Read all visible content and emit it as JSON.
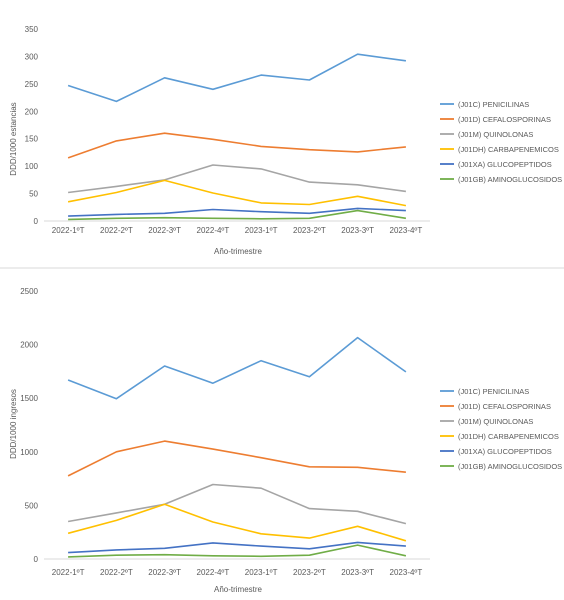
{
  "chart_data": [
    {
      "type": "line",
      "title": "",
      "xlabel": "Año-trimestre",
      "ylabel": "DDD/1000 estancias",
      "categories": [
        "2022-1ºT",
        "2022-2ºT",
        "2022-3ºT",
        "2022-4ºT",
        "2023-1ºT",
        "2023-2ºT",
        "2023-3ºT",
        "2023-4ºT"
      ],
      "ylim": [
        0,
        350
      ],
      "yticks": [
        0,
        50,
        100,
        150,
        200,
        250,
        300,
        350
      ],
      "grid": false,
      "legend": "right",
      "series": [
        {
          "name": "(J01C) PENICILINAS",
          "color": "#5b9bd5",
          "values": [
            247,
            218,
            261,
            240,
            266,
            257,
            304,
            292
          ]
        },
        {
          "name": "(J01D) CEFALOSPORINAS",
          "color": "#ed7d31",
          "values": [
            115,
            146,
            160,
            149,
            136,
            130,
            126,
            135
          ]
        },
        {
          "name": "(J01M) QUINOLONAS",
          "color": "#a5a5a5",
          "values": [
            52,
            63,
            75,
            102,
            95,
            71,
            66,
            54
          ]
        },
        {
          "name": "(J01DH) CARBAPENEMICOS",
          "color": "#ffc000",
          "values": [
            35,
            52,
            74,
            51,
            33,
            30,
            45,
            28
          ]
        },
        {
          "name": "(J01XA) GLUCOPEPTIDOS",
          "color": "#4472c4",
          "values": [
            9,
            12,
            14,
            21,
            17,
            14,
            23,
            19
          ]
        },
        {
          "name": "(J01GB) AMINOGLUCOSIDOS",
          "color": "#70ad47",
          "values": [
            3,
            5,
            6,
            5,
            4,
            5,
            19,
            5
          ]
        }
      ]
    },
    {
      "type": "line",
      "title": "",
      "xlabel": "Año-trimestre",
      "ylabel": "DDD/1000 ingresos",
      "categories": [
        "2022-1ºT",
        "2022-2ºT",
        "2022-3ºT",
        "2022-4ºT",
        "2023-1ºT",
        "2023-2ºT",
        "2023-3ºT",
        "2023-4ºT"
      ],
      "ylim": [
        0,
        2500
      ],
      "yticks": [
        0,
        500,
        1000,
        1500,
        2000,
        2500
      ],
      "grid": false,
      "legend": "right",
      "series": [
        {
          "name": "(J01C) PENICILINAS",
          "color": "#5b9bd5",
          "values": [
            1670,
            1495,
            1800,
            1640,
            1850,
            1700,
            2065,
            1745
          ]
        },
        {
          "name": "(J01D) CEFALOSPORINAS",
          "color": "#ed7d31",
          "values": [
            775,
            1000,
            1100,
            1025,
            945,
            860,
            855,
            810
          ]
        },
        {
          "name": "(J01M) QUINOLONAS",
          "color": "#a5a5a5",
          "values": [
            350,
            430,
            510,
            695,
            660,
            470,
            445,
            330
          ]
        },
        {
          "name": "(J01DH) CARBAPENEMICOS",
          "color": "#ffc000",
          "values": [
            240,
            360,
            510,
            345,
            235,
            195,
            305,
            170
          ]
        },
        {
          "name": "(J01XA) GLUCOPEPTIDOS",
          "color": "#4472c4",
          "values": [
            60,
            85,
            100,
            150,
            120,
            95,
            155,
            120
          ]
        },
        {
          "name": "(J01GB) AMINOGLUCOSIDOS",
          "color": "#70ad47",
          "values": [
            20,
            35,
            40,
            30,
            25,
            35,
            130,
            30
          ]
        }
      ]
    }
  ]
}
